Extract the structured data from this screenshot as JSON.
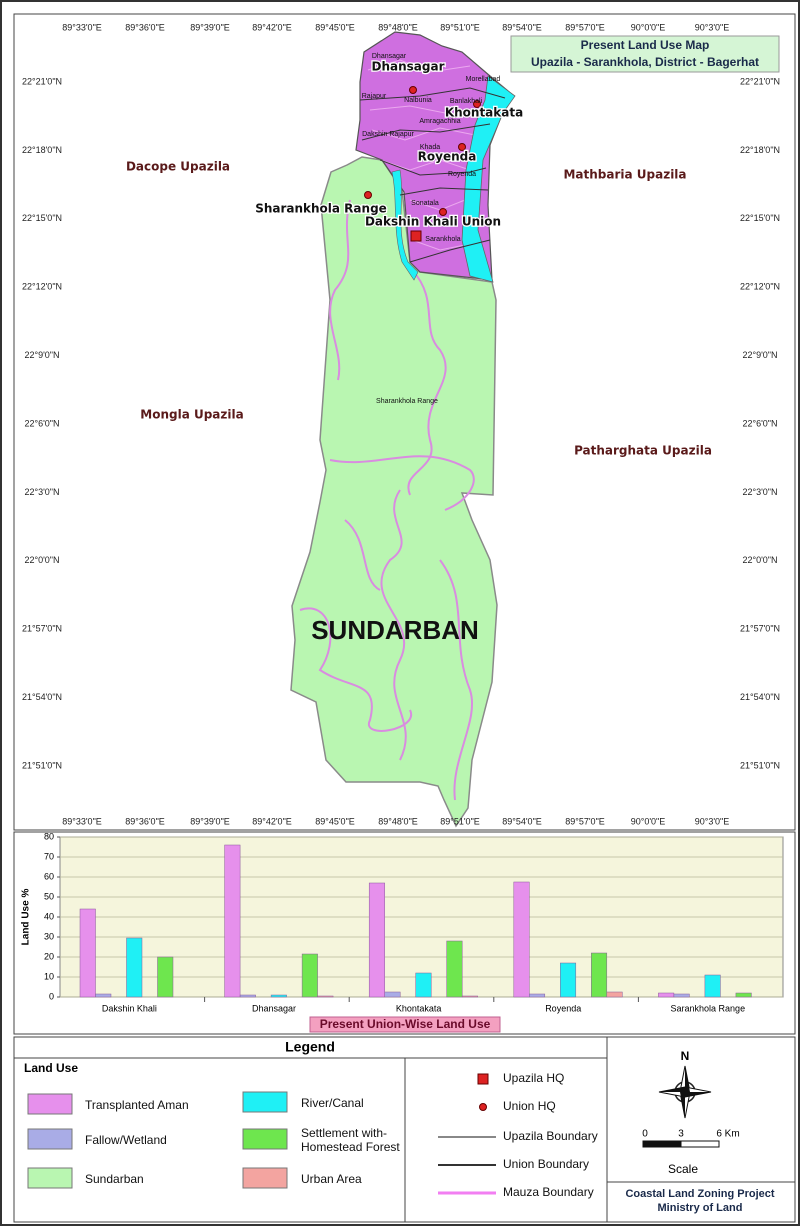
{
  "map": {
    "title": "Present Land Use Map",
    "subtitle": "Upazila - Sarankhola, District - Bagerhat",
    "longitudes": [
      "89°33'0\"E",
      "89°36'0\"E",
      "89°39'0\"E",
      "89°42'0\"E",
      "89°45'0\"E",
      "89°48'0\"E",
      "89°51'0\"E",
      "89°54'0\"E",
      "89°57'0\"E",
      "90°0'0\"E",
      "90°3'0\"E"
    ],
    "latitudes": [
      "22°21'0\"N",
      "22°18'0\"N",
      "22°15'0\"N",
      "22°12'0\"N",
      "22°9'0\"N",
      "22°6'0\"N",
      "22°3'0\"N",
      "22°0'0\"N",
      "21°57'0\"N",
      "21°54'0\"N",
      "21°51'0\"N"
    ],
    "regions": [
      "Dacope Upazila",
      "Mathbaria Upazila",
      "Mongla Upazila",
      "Patharghata Upazila"
    ],
    "sundarban": "SUNDARBAN",
    "unions": [
      "Dhansagar",
      "Khontakata",
      "Royenda",
      "Sharankhola Range",
      "Dakshin Khali Union"
    ],
    "mauzas": [
      "Dhansagar",
      "Morellabad",
      "Rajapur",
      "Nalbunia",
      "Banlakhali",
      "Amragachhia",
      "Dakshin Rajapur",
      "Khada",
      "Royenda",
      "Sonatala",
      "Sarankhola",
      "Sharankhola Range"
    ]
  },
  "chart_data": {
    "type": "bar",
    "title": "Present Union-Wise Land Use",
    "y_label": "Land Use %",
    "categories": [
      "Dakshin Khali",
      "Dhansagar",
      "Khontakata",
      "Royenda",
      "Sarankhola Range"
    ],
    "series": [
      {
        "name": "Transplanted Aman",
        "color": "#e690ec",
        "values": [
          44,
          76,
          57,
          57.5,
          2
        ]
      },
      {
        "name": "Fallow/Wetland",
        "color": "#a9ace6",
        "values": [
          1.5,
          1,
          2.5,
          1.5,
          1.5
        ]
      },
      {
        "name": "River/Canal",
        "color": "#1ff0f5",
        "values": [
          29.5,
          1,
          12,
          17,
          11
        ]
      },
      {
        "name": "Settlement with-Homestead Forest",
        "color": "#6ee64e",
        "values": [
          20,
          21.5,
          28,
          22,
          2
        ]
      },
      {
        "name": "Urban Area",
        "color": "#f3a4a0",
        "values": [
          0,
          0.5,
          0.5,
          2.5,
          0
        ]
      }
    ],
    "ylim": [
      0,
      80
    ],
    "yticks": [
      0,
      10,
      20,
      30,
      40,
      50,
      60,
      70,
      80
    ],
    "grid": true
  },
  "legend": {
    "title": "Legend",
    "land_use_title": "Land Use",
    "sundarban": {
      "name": "Sundarban",
      "color": "#b9f6b1"
    },
    "symbols": [
      "Upazila HQ",
      "Union HQ",
      "Upazila Boundary",
      "Union Boundary",
      "Mauza Boundary"
    ],
    "compass": "N",
    "scale": {
      "ticks": [
        "0",
        "3",
        "6 Km"
      ],
      "label": "Scale"
    },
    "footer": [
      "Coastal Land Zoning Project",
      "Ministry of Land"
    ]
  }
}
